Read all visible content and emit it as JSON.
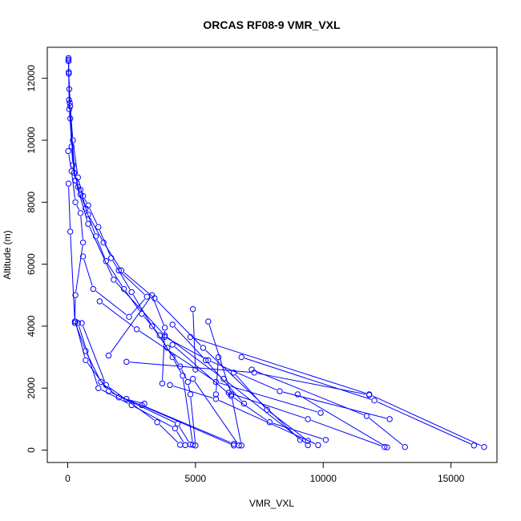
{
  "chart_data": {
    "type": "line",
    "title": "ORCAS RF08-9 VMR_VXL",
    "xlabel": "VMR_VXL",
    "ylabel": "Altitude (m)",
    "xlim": [
      -800,
      16800
    ],
    "ylim": [
      -400,
      13000
    ],
    "x_ticks": [
      0,
      5000,
      10000,
      15000
    ],
    "x_tick_labels": [
      "0",
      "5000",
      "10000",
      "15000"
    ],
    "y_ticks": [
      0,
      2000,
      4000,
      6000,
      8000,
      10000,
      12000
    ],
    "y_tick_labels": [
      "0",
      "2000",
      "4000",
      "6000",
      "8000",
      "10000",
      "12000"
    ],
    "grid": false,
    "color": "#0000ff",
    "marker": "open-circle",
    "series": [
      {
        "x": [
          30,
          40,
          60,
          80,
          100,
          150,
          200,
          300,
          400,
          500,
          600,
          800,
          1200,
          1700,
          2500,
          3300,
          3900,
          4400,
          4700,
          4800,
          5000
        ],
        "y": [
          12650,
          12200,
          11650,
          11200,
          10700,
          9800,
          9200,
          8700,
          8500,
          8400,
          8200,
          7900,
          7200,
          6200,
          5100,
          4000,
          3300,
          2700,
          2200,
          1800,
          150
        ]
      },
      {
        "x": [
          30,
          40,
          100,
          200,
          400,
          700,
          1100,
          1500,
          2200,
          2900,
          3600,
          4100,
          4500,
          4900
        ],
        "y": [
          12600,
          12150,
          11100,
          10000,
          8800,
          7800,
          6900,
          6100,
          5200,
          4400,
          3700,
          3000,
          2400,
          170
        ]
      },
      {
        "x": [
          30,
          60,
          250,
          500,
          800,
          1400,
          2100,
          3400,
          5300,
          9100
        ],
        "y": [
          12550,
          11000,
          8950,
          8250,
          7600,
          6700,
          5800,
          4900,
          3300,
          330
        ]
      },
      {
        "x": [
          50,
          300,
          800,
          1800,
          3800,
          6100,
          9400
        ],
        "y": [
          11300,
          8700,
          7300,
          5500,
          3700,
          2300,
          160
        ]
      },
      {
        "x": [
          20,
          150,
          300,
          500,
          600,
          300,
          280,
          700,
          1300,
          2000,
          3000
        ],
        "y": [
          9650,
          9000,
          8000,
          7650,
          6700,
          5000,
          4150,
          3200,
          2200,
          1700,
          1500
        ]
      },
      {
        "x": [
          30,
          100,
          280,
          300,
          700,
          1600,
          4300,
          4800
        ],
        "y": [
          8600,
          7050,
          4100,
          4150,
          2900,
          1900,
          850,
          180
        ]
      },
      {
        "x": [
          600,
          1000,
          2400,
          3100,
          2000
        ],
        "y": [
          6250,
          5200,
          4300,
          4950,
          5800
        ]
      },
      {
        "x": [
          400,
          1200,
          2500,
          4200,
          4600
        ],
        "y": [
          4100,
          2000,
          1450,
          700,
          160
        ]
      },
      {
        "x": [
          550,
          1500,
          3500,
          4400
        ],
        "y": [
          4100,
          2100,
          900,
          170
        ]
      },
      {
        "x": [
          1600,
          3300,
          3800,
          3700
        ],
        "y": [
          3050,
          5000,
          3950,
          2150
        ]
      },
      {
        "x": [
          2300,
          7300,
          11800
        ],
        "y": [
          2850,
          2500,
          1780
        ]
      },
      {
        "x": [
          1250,
          2700,
          5800,
          9900
        ],
        "y": [
          4800,
          3900,
          2200,
          1200
        ]
      },
      {
        "x": [
          3800,
          5500,
          8300,
          12600
        ],
        "y": [
          3650,
          2900,
          1900,
          1000
        ]
      },
      {
        "x": [
          4000,
          5800,
          9800
        ],
        "y": [
          2100,
          1650,
          160
        ]
      },
      {
        "x": [
          4100,
          5400,
          6900
        ],
        "y": [
          4050,
          2900,
          1500
        ]
      },
      {
        "x": [
          4900,
          5000
        ],
        "y": [
          4550,
          2600
        ]
      },
      {
        "x": [
          5500,
          6400,
          6800
        ],
        "y": [
          4150,
          1800,
          150
        ]
      },
      {
        "x": [
          5900,
          5800
        ],
        "y": [
          3000,
          1800
        ]
      },
      {
        "x": [
          4100,
          6400,
          7900,
          10100
        ],
        "y": [
          3400,
          1750,
          900,
          330
        ]
      },
      {
        "x": [
          6300,
          9400,
          12400
        ],
        "y": [
          1850,
          1000,
          100
        ]
      },
      {
        "x": [
          6500,
          7800,
          9400
        ],
        "y": [
          2500,
          1300,
          300
        ]
      },
      {
        "x": [
          9000,
          12500
        ],
        "y": [
          1800,
          90
        ]
      },
      {
        "x": [
          7200,
          11700,
          13200
        ],
        "y": [
          2600,
          1100,
          100
        ]
      },
      {
        "x": [
          6800,
          12000,
          15900
        ],
        "y": [
          3000,
          1600,
          150
        ]
      },
      {
        "x": [
          4800,
          11800,
          16300
        ],
        "y": [
          3650,
          1800,
          100
        ]
      },
      {
        "x": [
          2300,
          6500
        ],
        "y": [
          1650,
          150
        ]
      },
      {
        "x": [
          2900,
          6500
        ],
        "y": [
          1450,
          200
        ]
      },
      {
        "x": [
          4900,
          6700
        ],
        "y": [
          2300,
          150
        ]
      }
    ]
  }
}
